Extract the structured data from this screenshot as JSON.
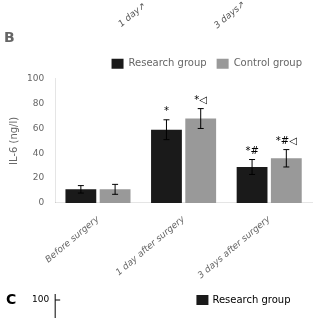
{
  "chart_data": {
    "type": "bar",
    "title": "B",
    "ylabel": "IL-6 (ng/l)",
    "categories": [
      "Before surgery",
      "1 day after surgery",
      "3 days after surgery"
    ],
    "series": [
      {
        "name": "Research group",
        "color": "#1a1a1a",
        "values": [
          11,
          59,
          29
        ],
        "errors": [
          3,
          8,
          6
        ],
        "annotations": [
          null,
          "*",
          "*#"
        ]
      },
      {
        "name": "Control group",
        "color": "#999999",
        "values": [
          11,
          68,
          36
        ],
        "errors": [
          4,
          8,
          7
        ],
        "annotations": [
          null,
          "*◁",
          "*#◁"
        ]
      }
    ],
    "ylim": [
      0,
      100
    ],
    "yticks": [
      0,
      20,
      40,
      60,
      80,
      100
    ],
    "grid": false,
    "legend": "upper right",
    "annotations": [
      "1 day↗",
      "3 days↗",
      "C",
      "100",
      "Research group"
    ]
  }
}
